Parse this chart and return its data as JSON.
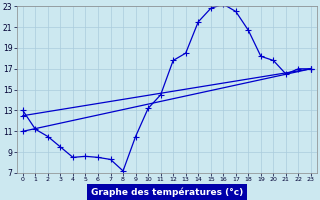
{
  "background_color": "#cce8f0",
  "grid_color": "#aaccdd",
  "line_color": "#0000cc",
  "xlabel": "Graphe des températures (°c)",
  "xlabel_color": "#ffffff",
  "xlabel_bg": "#0000aa",
  "xlim": [
    -0.5,
    23.5
  ],
  "ylim": [
    7,
    23
  ],
  "yticks": [
    7,
    9,
    11,
    13,
    15,
    17,
    19,
    21,
    23
  ],
  "xticks": [
    0,
    1,
    2,
    3,
    4,
    5,
    6,
    7,
    8,
    9,
    10,
    11,
    12,
    13,
    14,
    15,
    16,
    17,
    18,
    19,
    20,
    21,
    22,
    23
  ],
  "line1_x": [
    0,
    1,
    2,
    3,
    4,
    5,
    6,
    7,
    8,
    9,
    10,
    11,
    12,
    13,
    14,
    15,
    16,
    17,
    18,
    19,
    20,
    21,
    22,
    23
  ],
  "line1_y": [
    13.0,
    11.2,
    10.5,
    9.5,
    8.5,
    8.6,
    8.5,
    8.3,
    7.2,
    10.5,
    13.2,
    14.5,
    17.8,
    18.5,
    21.5,
    22.8,
    23.2,
    22.5,
    20.7,
    18.2,
    17.8,
    16.5,
    17.0,
    17.0
  ],
  "line2_x": [
    0,
    23
  ],
  "line2_y": [
    11.0,
    17.0
  ],
  "line3_x": [
    0,
    23
  ],
  "line3_y": [
    12.5,
    17.0
  ],
  "figsize": [
    3.2,
    2.0
  ],
  "dpi": 100
}
